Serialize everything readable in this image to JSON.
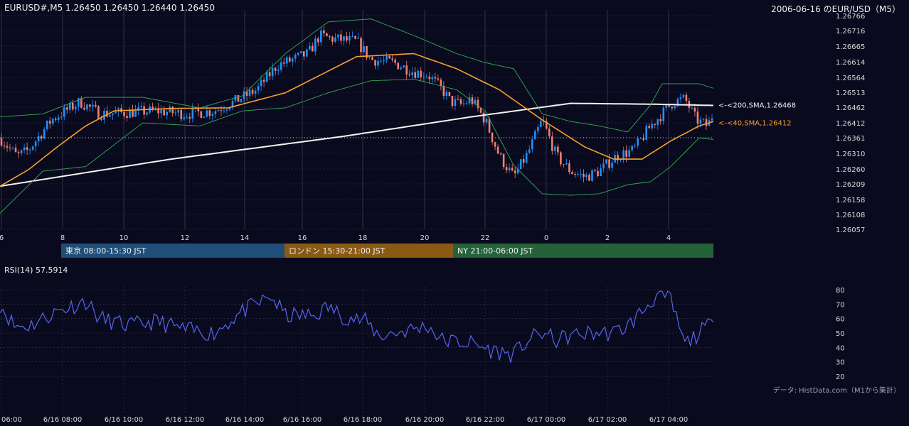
{
  "header": {
    "symbol_info": "EURUSD#,M5 1.26450 1.26450 1.26440 1.26450",
    "date_title": "2006-06-16 のEUR/USD（M5）"
  },
  "colors": {
    "background": "#0a0a1e",
    "grid": "#3a3a55",
    "candle_up": "#1e90ff",
    "candle_down": "#f08070",
    "sma40": "#f5a030",
    "sma200": "#f2f2f2",
    "bollinger": "#33aa55",
    "rsi": "#5566ee",
    "session_tokyo": "#1f4e79",
    "session_london": "#8a5a14",
    "session_ny": "#25623a"
  },
  "chart_data": [
    {
      "type": "candlestick",
      "title": "",
      "price_ticks": [
        "1.26766",
        "1.26716",
        "1.26665",
        "1.26614",
        "1.26564",
        "1.26513",
        "1.26462",
        "1.26412",
        "1.26361",
        "1.26310",
        "1.26260",
        "1.26209",
        "1.26158",
        "1.26108",
        "1.26057"
      ],
      "ylim": [
        1.26057,
        1.26766
      ],
      "x_hour_ticks": [
        "6",
        "8",
        "10",
        "12",
        "14",
        "16",
        "18",
        "20",
        "22",
        "0",
        "2",
        "4"
      ],
      "reference_price": 1.26361,
      "series": [
        {
          "name": "<-<200,SMA,1.26468",
          "indicator": "SMA200",
          "last_value": 1.26468,
          "anchors": [
            [
              0,
              1.262
            ],
            [
              60,
              1.2629
            ],
            [
              120,
              1.26365
            ],
            [
              165,
              1.2643
            ],
            [
              200,
              1.26475
            ],
            [
              230,
              1.26472
            ],
            [
              250,
              1.26468
            ]
          ]
        },
        {
          "name": "<-<40,SMA,1.26412",
          "indicator": "SMA40",
          "last_value": 1.26412,
          "anchors": [
            [
              0,
              1.262
            ],
            [
              10,
              1.26255
            ],
            [
              20,
              1.2633
            ],
            [
              30,
              1.264
            ],
            [
              40,
              1.2645
            ],
            [
              60,
              1.26458
            ],
            [
              80,
              1.2646
            ],
            [
              100,
              1.2651
            ],
            [
              125,
              1.2663
            ],
            [
              145,
              1.2664
            ],
            [
              160,
              1.2659
            ],
            [
              175,
              1.2652
            ],
            [
              190,
              1.2642
            ],
            [
              205,
              1.2633
            ],
            [
              215,
              1.2629
            ],
            [
              225,
              1.2629
            ],
            [
              235,
              1.2635
            ],
            [
              245,
              1.264
            ],
            [
              250,
              1.26415
            ]
          ]
        },
        {
          "name": "",
          "indicator": "Bollinger upper",
          "anchors": [
            [
              0,
              1.2643
            ],
            [
              15,
              1.2644
            ],
            [
              30,
              1.26495
            ],
            [
              50,
              1.26495
            ],
            [
              70,
              1.2646
            ],
            [
              85,
              1.265
            ],
            [
              100,
              1.2664
            ],
            [
              115,
              1.26745
            ],
            [
              130,
              1.26755
            ],
            [
              145,
              1.267
            ],
            [
              160,
              1.2664
            ],
            [
              170,
              1.2661
            ],
            [
              180,
              1.2659
            ],
            [
              190,
              1.2644
            ],
            [
              200,
              1.26415
            ],
            [
              210,
              1.264
            ],
            [
              220,
              1.2638
            ],
            [
              228,
              1.2647
            ],
            [
              232,
              1.2654
            ],
            [
              245,
              1.2654
            ],
            [
              250,
              1.26525
            ]
          ]
        },
        {
          "name": "",
          "indicator": "Bollinger lower",
          "anchors": [
            [
              0,
              1.2611
            ],
            [
              15,
              1.2625
            ],
            [
              30,
              1.26265
            ],
            [
              50,
              1.2641
            ],
            [
              70,
              1.264
            ],
            [
              85,
              1.2645
            ],
            [
              100,
              1.2646
            ],
            [
              115,
              1.2651
            ],
            [
              130,
              1.2655
            ],
            [
              145,
              1.26555
            ],
            [
              160,
              1.2652
            ],
            [
              170,
              1.2645
            ],
            [
              180,
              1.2627
            ],
            [
              190,
              1.26175
            ],
            [
              200,
              1.2617
            ],
            [
              210,
              1.26175
            ],
            [
              220,
              1.26205
            ],
            [
              228,
              1.26215
            ],
            [
              235,
              1.26265
            ],
            [
              245,
              1.2636
            ],
            [
              250,
              1.26355
            ]
          ]
        }
      ],
      "candles": [
        {
          "a": [
            [
              0,
              1.2636
            ],
            [
              6,
              1.263
            ],
            [
              10,
              1.2632
            ],
            [
              18,
              1.2642
            ],
            [
              28,
              1.2648
            ],
            [
              35,
              1.2644
            ],
            [
              45,
              1.26445
            ],
            [
              55,
              1.2645
            ],
            [
              65,
              1.2644
            ],
            [
              75,
              1.2645
            ],
            [
              82,
              1.2648
            ],
            [
              90,
              1.2652
            ],
            [
              97,
              1.266
            ],
            [
              108,
              1.2664
            ],
            [
              112,
              1.267
            ],
            [
              116,
              1.2669
            ],
            [
              125,
              1.2668
            ],
            [
              130,
              1.2662
            ],
            [
              138,
              1.2661
            ],
            [
              145,
              1.2658
            ],
            [
              150,
              1.2657
            ],
            [
              155,
              1.2652
            ],
            [
              158,
              1.2648
            ],
            [
              162,
              1.2647
            ],
            [
              165,
              1.2649
            ],
            [
              170,
              1.2642
            ],
            [
              175,
              1.263
            ],
            [
              180,
              1.2623
            ],
            [
              185,
              1.2631
            ],
            [
              190,
              1.2642
            ],
            [
              195,
              1.263
            ],
            [
              200,
              1.2625
            ],
            [
              205,
              1.2623
            ],
            [
              210,
              1.2625
            ],
            [
              216,
              1.263
            ],
            [
              222,
              1.2632
            ],
            [
              228,
              1.264
            ],
            [
              232,
              1.2644
            ],
            [
              236,
              1.2648
            ],
            [
              240,
              1.2649
            ],
            [
              244,
              1.2642
            ],
            [
              248,
              1.264
            ],
            [
              250,
              1.26445
            ]
          ]
        }
      ]
    },
    {
      "type": "line",
      "title": "",
      "label": "RSI(14) 57.5914",
      "y_ticks": [
        "80",
        "70",
        "60",
        "50",
        "40",
        "30",
        "20"
      ],
      "ylim": [
        20,
        80
      ],
      "series": [
        {
          "name": "",
          "anchors": [
            [
              0,
              70
            ],
            [
              5,
              55
            ],
            [
              10,
              55
            ],
            [
              15,
              60
            ],
            [
              20,
              65
            ],
            [
              30,
              72
            ],
            [
              35,
              60
            ],
            [
              45,
              55
            ],
            [
              55,
              58
            ],
            [
              65,
              52
            ],
            [
              75,
              50
            ],
            [
              85,
              65
            ],
            [
              95,
              75
            ],
            [
              100,
              62
            ],
            [
              110,
              62
            ],
            [
              115,
              68
            ],
            [
              120,
              62
            ],
            [
              128,
              58
            ],
            [
              133,
              48
            ],
            [
              143,
              52
            ],
            [
              150,
              55
            ],
            [
              155,
              45
            ],
            [
              165,
              43
            ],
            [
              172,
              38
            ],
            [
              180,
              35
            ],
            [
              185,
              45
            ],
            [
              190,
              50
            ],
            [
              195,
              45
            ],
            [
              200,
              48
            ],
            [
              207,
              50
            ],
            [
              215,
              50
            ],
            [
              220,
              55
            ],
            [
              225,
              65
            ],
            [
              230,
              76
            ],
            [
              235,
              73
            ],
            [
              237,
              60
            ],
            [
              240,
              42
            ],
            [
              245,
              50
            ],
            [
              250,
              57.59
            ]
          ]
        }
      ]
    }
  ],
  "sessions": [
    {
      "label": "東京 08:00-15:30 JST"
    },
    {
      "label": "ロンドン 15:30-21:00 JST"
    },
    {
      "label": "NY 21:00-06:00 JST"
    }
  ],
  "time_axis": [
    "06:00",
    "6/16 08:00",
    "6/16 10:00",
    "6/16 12:00",
    "6/16 14:00",
    "6/16 16:00",
    "6/16 18:00",
    "6/16 20:00",
    "6/16 22:00",
    "6/17 00:00",
    "6/17 02:00",
    "6/17 04:00"
  ],
  "source_note": "データ: HistData.com（M1から集計）"
}
